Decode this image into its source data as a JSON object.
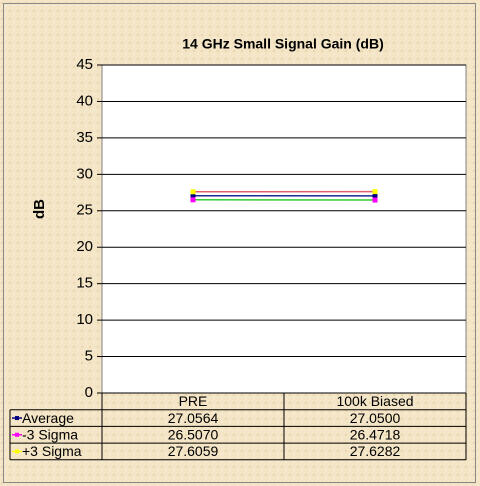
{
  "chart_data": {
    "type": "line",
    "title": "14 GHz Small Signal Gain (dB)",
    "y_label": "dB",
    "categories": [
      "PRE",
      "100k Biased"
    ],
    "series": [
      {
        "name": "Average",
        "color": "#000080",
        "line_color": "#1a2a90",
        "values": [
          27.0564,
          27.05
        ],
        "value_labels": [
          "27.0564",
          "27.0500"
        ]
      },
      {
        "name": "-3 Sigma",
        "color": "#ff00ff",
        "line_color": "#33cc33",
        "values": [
          26.507,
          26.4718
        ],
        "value_labels": [
          "26.5070",
          "26.4718"
        ]
      },
      {
        "name": "+3 Sigma",
        "color": "#ffff00",
        "line_color": "#e06070",
        "values": [
          27.6059,
          27.6282
        ],
        "value_labels": [
          "27.6059",
          "27.6282"
        ]
      }
    ],
    "ylim": [
      0,
      45
    ],
    "yticks": [
      0,
      5,
      10,
      15,
      20,
      25,
      30,
      35,
      40,
      45
    ],
    "grid": true
  }
}
